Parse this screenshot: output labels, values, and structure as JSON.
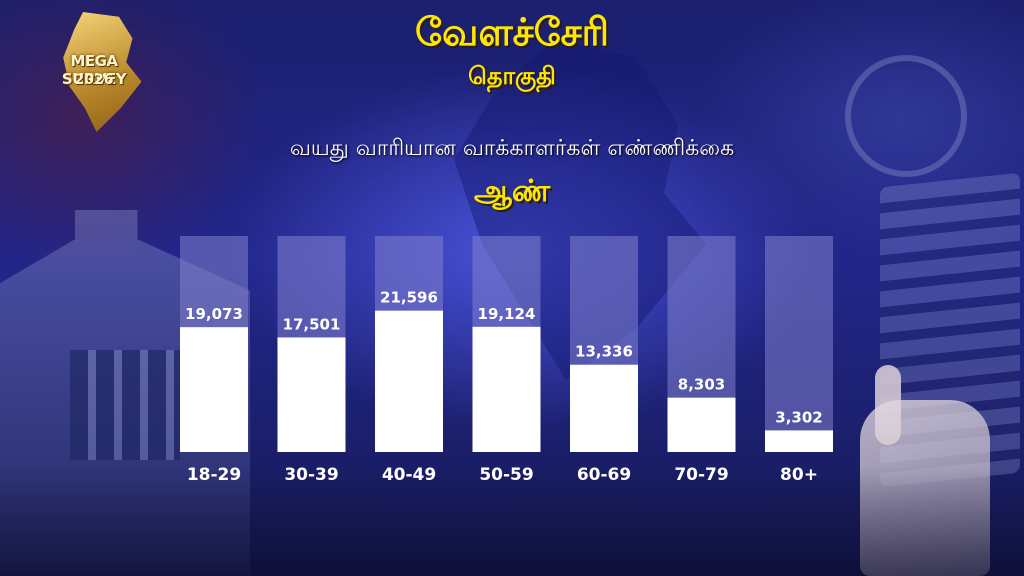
{
  "header": {
    "title": "வேளச்சேரி",
    "subtitle": "தொகுதி"
  },
  "logo": {
    "text": "MEGA SURVEY",
    "year": "2026"
  },
  "colors": {
    "accent": "#ffe600",
    "bar": "#ffffff",
    "track": "#8282cd"
  },
  "chart_data": {
    "type": "bar",
    "title": "வயது வாரியான வாக்காளர்கள் எண்ணிக்கை",
    "subtitle": "ஆண்",
    "categories": [
      "18-29",
      "30-39",
      "40-49",
      "50-59",
      "60-69",
      "70-79",
      "80+"
    ],
    "values": [
      19073,
      17501,
      21596,
      19124,
      13336,
      8303,
      3302
    ],
    "value_labels": [
      "19,073",
      "17,501",
      "21,596",
      "19,124",
      "13,336",
      "8,303",
      "3,302"
    ],
    "xlabel": "",
    "ylabel": "",
    "grid": false,
    "legend": "none"
  }
}
